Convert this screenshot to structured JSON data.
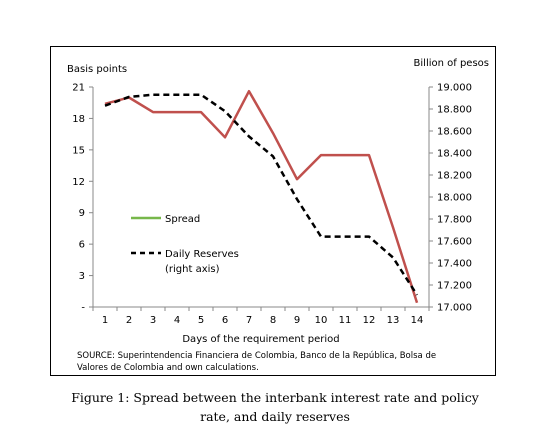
{
  "chart_data": {
    "type": "line",
    "left_axis_label": "Basis points",
    "right_axis_label": "Billion of pesos",
    "xlabel": "Days of the requirement period",
    "categories": [
      "1",
      "2",
      "3",
      "4",
      "5",
      "6",
      "7",
      "8",
      "9",
      "10",
      "11",
      "12",
      "13",
      "14"
    ],
    "left_ticks": [
      "21",
      "18",
      "15",
      "12",
      "9",
      "6",
      "3",
      "-"
    ],
    "left_ylim": [
      0,
      21
    ],
    "right_ticks": [
      "19.000",
      "18.800",
      "18.600",
      "18.400",
      "18.200",
      "18.000",
      "17.800",
      "17.600",
      "17.400",
      "17.200",
      "17.000"
    ],
    "right_ylim": [
      17.0,
      19.0
    ],
    "series": [
      {
        "name": "Spread",
        "axis": "left",
        "color": "#c0504d",
        "legend_color": "#77b74a",
        "style": "solid",
        "values": [
          19.4,
          20.0,
          18.6,
          18.6,
          18.6,
          16.2,
          20.6,
          16.6,
          12.2,
          14.5,
          14.5,
          14.5,
          7.6,
          0.4
        ]
      },
      {
        "name": "Daily Reserves",
        "name_line2": "(right axis)",
        "axis": "right",
        "color": "#000000",
        "style": "dashed",
        "values": [
          18.83,
          18.91,
          18.93,
          18.93,
          18.93,
          18.78,
          18.55,
          18.37,
          17.98,
          17.64,
          17.64,
          17.64,
          17.45,
          17.11
        ]
      }
    ],
    "grid": false,
    "legend_position": "inside-left"
  },
  "source_note": {
    "line1": "SOURCE: Superintendencia Financiera de Colombia, Banco de la República, Bolsa de",
    "line2": "Valores de Colombia and own calculations."
  },
  "caption": {
    "line1": "Figure 1: Spread between the interbank interest rate and policy",
    "line2": "rate, and daily reserves"
  }
}
